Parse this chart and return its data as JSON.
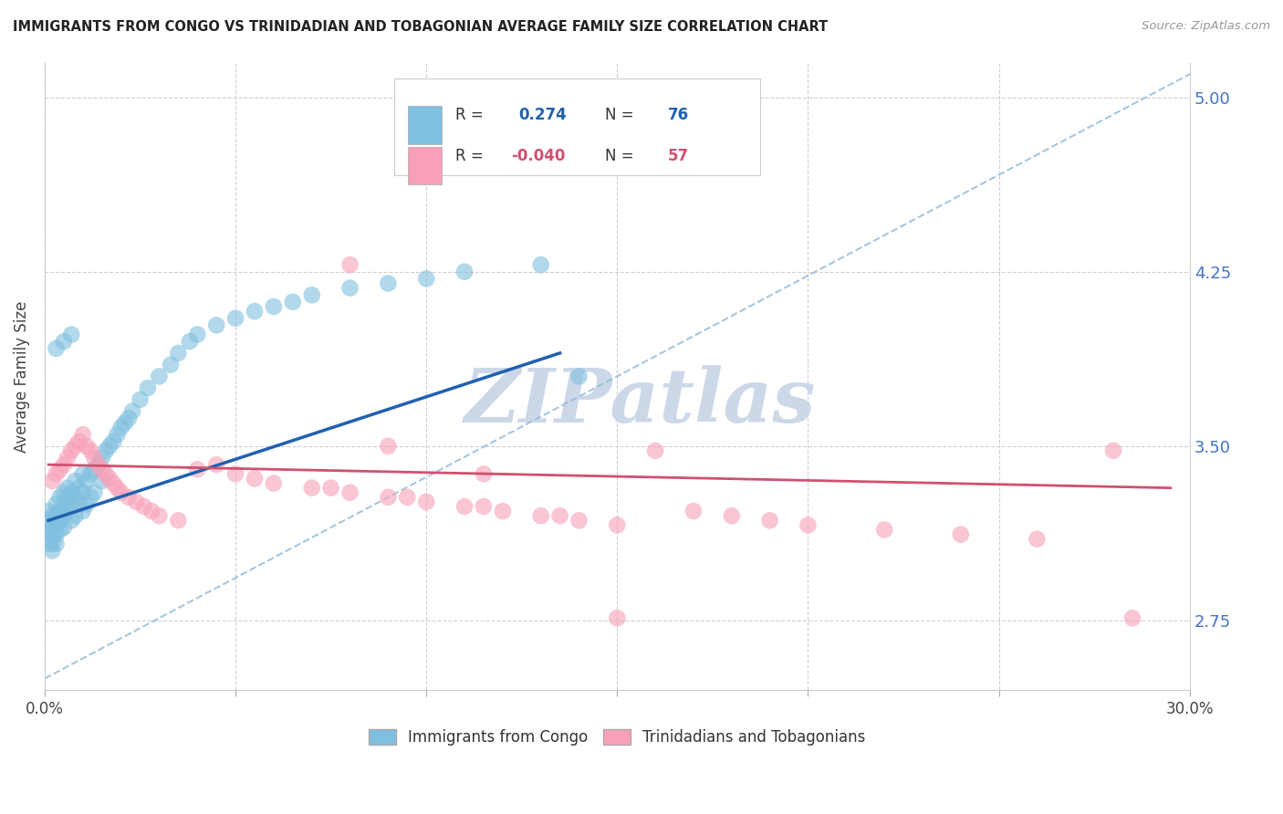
{
  "title": "IMMIGRANTS FROM CONGO VS TRINIDADIAN AND TOBAGONIAN AVERAGE FAMILY SIZE CORRELATION CHART",
  "source": "Source: ZipAtlas.com",
  "ylabel": "Average Family Size",
  "xmin": 0.0,
  "xmax": 0.3,
  "ymin": 2.45,
  "ymax": 5.15,
  "yticks": [
    2.75,
    3.5,
    4.25,
    5.0
  ],
  "xtick_positions": [
    0.0,
    0.05,
    0.1,
    0.15,
    0.2,
    0.25,
    0.3
  ],
  "xtick_labels": [
    "0.0%",
    "",
    "",
    "",
    "",
    "",
    "30.0%"
  ],
  "legend_label1": "Immigrants from Congo",
  "legend_label2": "Trinidadians and Tobagonians",
  "r1": 0.274,
  "n1": 76,
  "r2": -0.04,
  "n2": 57,
  "blue_color": "#7fbfdf",
  "pink_color": "#f8a0b8",
  "blue_line_color": "#2060b0",
  "pink_line_color": "#d05070",
  "dashed_line_color": "#90b8d8",
  "watermark_color": "#ccd8e8",
  "watermark_text": "ZIPatlas",
  "blue_r_color": "#2060b0",
  "pink_r_color": "#d05070",
  "blue_points_x": [
    0.001,
    0.001,
    0.001,
    0.001,
    0.001,
    0.002,
    0.002,
    0.002,
    0.002,
    0.002,
    0.003,
    0.003,
    0.003,
    0.003,
    0.003,
    0.004,
    0.004,
    0.004,
    0.004,
    0.005,
    0.005,
    0.005,
    0.005,
    0.006,
    0.006,
    0.006,
    0.007,
    0.007,
    0.007,
    0.008,
    0.008,
    0.008,
    0.009,
    0.009,
    0.01,
    0.01,
    0.01,
    0.011,
    0.011,
    0.012,
    0.012,
    0.013,
    0.013,
    0.014,
    0.015,
    0.015,
    0.016,
    0.017,
    0.018,
    0.019,
    0.02,
    0.021,
    0.022,
    0.023,
    0.025,
    0.027,
    0.03,
    0.033,
    0.035,
    0.038,
    0.04,
    0.045,
    0.05,
    0.055,
    0.06,
    0.065,
    0.07,
    0.08,
    0.09,
    0.1,
    0.11,
    0.13,
    0.14,
    0.003,
    0.005,
    0.007
  ],
  "blue_points_y": [
    3.22,
    3.18,
    3.15,
    3.12,
    3.08,
    3.2,
    3.16,
    3.12,
    3.08,
    3.05,
    3.25,
    3.2,
    3.16,
    3.12,
    3.08,
    3.28,
    3.22,
    3.18,
    3.14,
    3.3,
    3.25,
    3.2,
    3.15,
    3.32,
    3.28,
    3.22,
    3.3,
    3.25,
    3.18,
    3.35,
    3.28,
    3.2,
    3.32,
    3.25,
    3.38,
    3.3,
    3.22,
    3.35,
    3.25,
    3.38,
    3.28,
    3.4,
    3.3,
    3.42,
    3.45,
    3.35,
    3.48,
    3.5,
    3.52,
    3.55,
    3.58,
    3.6,
    3.62,
    3.65,
    3.7,
    3.75,
    3.8,
    3.85,
    3.9,
    3.95,
    3.98,
    4.02,
    4.05,
    4.08,
    4.1,
    4.12,
    4.15,
    4.18,
    4.2,
    4.22,
    4.25,
    4.28,
    3.8,
    3.92,
    3.95,
    3.98
  ],
  "pink_points_x": [
    0.002,
    0.003,
    0.004,
    0.005,
    0.006,
    0.007,
    0.008,
    0.009,
    0.01,
    0.011,
    0.012,
    0.013,
    0.014,
    0.015,
    0.016,
    0.017,
    0.018,
    0.019,
    0.02,
    0.022,
    0.024,
    0.026,
    0.028,
    0.03,
    0.035,
    0.04,
    0.045,
    0.05,
    0.055,
    0.06,
    0.07,
    0.08,
    0.09,
    0.1,
    0.11,
    0.12,
    0.13,
    0.14,
    0.15,
    0.16,
    0.17,
    0.18,
    0.19,
    0.2,
    0.22,
    0.24,
    0.26,
    0.28,
    0.075,
    0.095,
    0.115,
    0.135,
    0.115,
    0.08,
    0.09,
    0.15,
    0.285
  ],
  "pink_points_y": [
    3.35,
    3.38,
    3.4,
    3.42,
    3.45,
    3.48,
    3.5,
    3.52,
    3.55,
    3.5,
    3.48,
    3.45,
    3.42,
    3.4,
    3.38,
    3.36,
    3.34,
    3.32,
    3.3,
    3.28,
    3.26,
    3.24,
    3.22,
    3.2,
    3.18,
    3.4,
    3.42,
    3.38,
    3.36,
    3.34,
    3.32,
    3.3,
    3.28,
    3.26,
    3.24,
    3.22,
    3.2,
    3.18,
    3.16,
    3.48,
    3.22,
    3.2,
    3.18,
    3.16,
    3.14,
    3.12,
    3.1,
    3.48,
    3.32,
    3.28,
    3.24,
    3.2,
    3.38,
    4.28,
    3.5,
    2.76,
    2.76
  ],
  "blue_line_x": [
    0.001,
    0.135
  ],
  "blue_line_y": [
    3.18,
    3.9
  ],
  "pink_line_x": [
    0.001,
    0.295
  ],
  "pink_line_y": [
    3.42,
    3.32
  ]
}
